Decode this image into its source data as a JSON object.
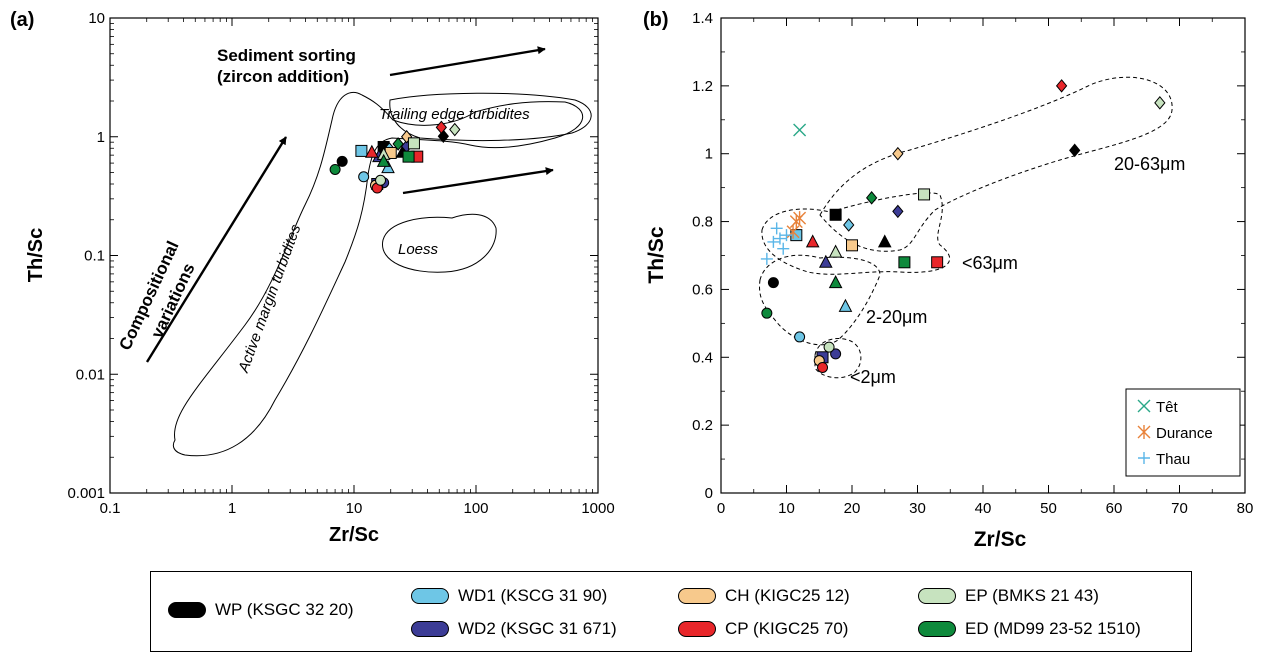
{
  "colors": {
    "WP": "#000000",
    "WD1": "#6ec6e6",
    "WD2": "#3c3c96",
    "CH": "#f7c98c",
    "CP": "#e8262a",
    "EP": "#c7e3bf",
    "ED": "#0e8a3c",
    "tet": "#2aa888",
    "durance": "#e8823a",
    "thau": "#5ab6e8"
  },
  "chart_data": [
    {
      "panel": "(a)",
      "type": "scatter",
      "xscale": "log",
      "yscale": "log",
      "xlim": [
        0.1,
        1000
      ],
      "ylim": [
        0.001,
        10
      ],
      "xlabel": "Zr/Sc",
      "ylabel": "Th/Sc",
      "xticks": [
        "0.1",
        "1",
        "10",
        "100",
        "1000"
      ],
      "yticks": [
        "0.001",
        "0.01",
        "0.1",
        "1",
        "10"
      ],
      "annotations": {
        "sorting1": "Sediment sorting",
        "sorting2": "(zircon addition)",
        "comp1": "Compositional",
        "comp2": "variations",
        "trailing": "Trailing edge turbidites",
        "active": "Active margin turbidites",
        "loess": "Loess"
      },
      "points": [
        {
          "s": "WP",
          "m": "circle",
          "x": 8,
          "y": 0.62
        },
        {
          "s": "WP",
          "m": "square",
          "x": 17.5,
          "y": 0.82
        },
        {
          "s": "WP",
          "m": "triangle",
          "x": 25,
          "y": 0.74
        },
        {
          "s": "WP",
          "m": "diamond",
          "x": 54,
          "y": 1.01
        },
        {
          "s": "WD1",
          "m": "circle",
          "x": 12,
          "y": 0.46
        },
        {
          "s": "WD1",
          "m": "square",
          "x": 11.5,
          "y": 0.76
        },
        {
          "s": "WD1",
          "m": "triangle",
          "x": 19,
          "y": 0.55
        },
        {
          "s": "WD1",
          "m": "diamond",
          "x": 19.5,
          "y": 0.79
        },
        {
          "s": "WD2",
          "m": "circle",
          "x": 17.5,
          "y": 0.41
        },
        {
          "s": "WD2",
          "m": "square",
          "x": 15.5,
          "y": 0.4
        },
        {
          "s": "WD2",
          "m": "triangle",
          "x": 16,
          "y": 0.68
        },
        {
          "s": "WD2",
          "m": "diamond",
          "x": 27,
          "y": 0.83
        },
        {
          "s": "CH",
          "m": "circle",
          "x": 15,
          "y": 0.39
        },
        {
          "s": "CH",
          "m": "square",
          "x": 20,
          "y": 0.73
        },
        {
          "s": "CH",
          "m": "diamond",
          "x": 27,
          "y": 1.0
        },
        {
          "s": "CP",
          "m": "circle",
          "x": 15.5,
          "y": 0.37
        },
        {
          "s": "CP",
          "m": "square",
          "x": 33,
          "y": 0.68
        },
        {
          "s": "CP",
          "m": "triangle",
          "x": 14,
          "y": 0.74
        },
        {
          "s": "CP",
          "m": "diamond",
          "x": 52,
          "y": 1.2
        },
        {
          "s": "EP",
          "m": "circle",
          "x": 16.5,
          "y": 0.43
        },
        {
          "s": "EP",
          "m": "square",
          "x": 31,
          "y": 0.88
        },
        {
          "s": "EP",
          "m": "triangle",
          "x": 17.5,
          "y": 0.71
        },
        {
          "s": "EP",
          "m": "diamond",
          "x": 67,
          "y": 1.15
        },
        {
          "s": "ED",
          "m": "circle",
          "x": 7,
          "y": 0.53
        },
        {
          "s": "ED",
          "m": "square",
          "x": 28,
          "y": 0.68
        },
        {
          "s": "ED",
          "m": "triangle",
          "x": 17.5,
          "y": 0.62
        },
        {
          "s": "ED",
          "m": "diamond",
          "x": 23,
          "y": 0.87
        }
      ]
    },
    {
      "panel": "(b)",
      "type": "scatter",
      "xlim": [
        0,
        80
      ],
      "ylim": [
        0,
        1.4
      ],
      "xlabel": "Zr/Sc",
      "ylabel": "Th/Sc",
      "xticks": [
        "0",
        "10",
        "20",
        "30",
        "40",
        "50",
        "60",
        "70",
        "80"
      ],
      "yticks": [
        "0",
        "0.2",
        "0.4",
        "0.6",
        "0.8",
        "1",
        "1.2",
        "1.4"
      ],
      "group_labels": {
        "g1": "20-63μm",
        "g2": "<63μm",
        "g3": "2-20μm",
        "g4": "<2μm"
      },
      "legend": {
        "placement": "bottom-right",
        "items": [
          {
            "key": "tet",
            "label": "Têt",
            "marker": "x"
          },
          {
            "key": "durance",
            "label": "Durance",
            "marker": "asterisk"
          },
          {
            "key": "thau",
            "label": "Thau",
            "marker": "plus"
          }
        ]
      },
      "points": [
        {
          "s": "WP",
          "m": "circle",
          "x": 8,
          "y": 0.62
        },
        {
          "s": "WP",
          "m": "square",
          "x": 17.5,
          "y": 0.82
        },
        {
          "s": "WP",
          "m": "triangle",
          "x": 25,
          "y": 0.74
        },
        {
          "s": "WP",
          "m": "diamond",
          "x": 54,
          "y": 1.01
        },
        {
          "s": "WD1",
          "m": "circle",
          "x": 12,
          "y": 0.46
        },
        {
          "s": "WD1",
          "m": "square",
          "x": 11.5,
          "y": 0.76
        },
        {
          "s": "WD1",
          "m": "triangle",
          "x": 19,
          "y": 0.55
        },
        {
          "s": "WD1",
          "m": "diamond",
          "x": 19.5,
          "y": 0.79
        },
        {
          "s": "WD2",
          "m": "circle",
          "x": 17.5,
          "y": 0.41
        },
        {
          "s": "WD2",
          "m": "square",
          "x": 15.5,
          "y": 0.4
        },
        {
          "s": "WD2",
          "m": "triangle",
          "x": 16,
          "y": 0.68
        },
        {
          "s": "WD2",
          "m": "diamond",
          "x": 27,
          "y": 0.83
        },
        {
          "s": "CH",
          "m": "circle",
          "x": 15,
          "y": 0.39
        },
        {
          "s": "CH",
          "m": "square",
          "x": 20,
          "y": 0.73
        },
        {
          "s": "CH",
          "m": "diamond",
          "x": 27,
          "y": 1.0
        },
        {
          "s": "CP",
          "m": "circle",
          "x": 15.5,
          "y": 0.37
        },
        {
          "s": "CP",
          "m": "square",
          "x": 33,
          "y": 0.68
        },
        {
          "s": "CP",
          "m": "triangle",
          "x": 14,
          "y": 0.74
        },
        {
          "s": "CP",
          "m": "diamond",
          "x": 52,
          "y": 1.2
        },
        {
          "s": "EP",
          "m": "circle",
          "x": 16.5,
          "y": 0.43
        },
        {
          "s": "EP",
          "m": "square",
          "x": 31,
          "y": 0.88
        },
        {
          "s": "EP",
          "m": "triangle",
          "x": 17.5,
          "y": 0.71
        },
        {
          "s": "EP",
          "m": "diamond",
          "x": 67,
          "y": 1.15
        },
        {
          "s": "ED",
          "m": "circle",
          "x": 7,
          "y": 0.53
        },
        {
          "s": "ED",
          "m": "square",
          "x": 28,
          "y": 0.68
        },
        {
          "s": "ED",
          "m": "triangle",
          "x": 17.5,
          "y": 0.62
        },
        {
          "s": "ED",
          "m": "diamond",
          "x": 23,
          "y": 0.87
        },
        {
          "s": "tet",
          "m": "x",
          "x": 12,
          "y": 1.07
        },
        {
          "s": "durance",
          "m": "asterisk",
          "x": 11.5,
          "y": 0.8
        },
        {
          "s": "durance",
          "m": "asterisk",
          "x": 12,
          "y": 0.81
        },
        {
          "s": "durance",
          "m": "asterisk",
          "x": 11,
          "y": 0.77
        },
        {
          "s": "thau",
          "m": "plus",
          "x": 8.5,
          "y": 0.78
        },
        {
          "s": "thau",
          "m": "plus",
          "x": 9,
          "y": 0.75
        },
        {
          "s": "thau",
          "m": "plus",
          "x": 8,
          "y": 0.74
        },
        {
          "s": "thau",
          "m": "plus",
          "x": 9.5,
          "y": 0.72
        },
        {
          "s": "thau",
          "m": "plus",
          "x": 10,
          "y": 0.76
        },
        {
          "s": "thau",
          "m": "plus",
          "x": 7,
          "y": 0.69
        }
      ]
    }
  ],
  "legend": [
    {
      "key": "WP",
      "label": "WP (KSGC 32 20)"
    },
    {
      "key": "WD1",
      "label": "WD1 (KSCG 31 90)"
    },
    {
      "key": "WD2",
      "label": "WD2 (KSGC 31 671)"
    },
    {
      "key": "CH",
      "label": "CH (KIGC25 12)"
    },
    {
      "key": "CP",
      "label": "CP (KIGC25 70)"
    },
    {
      "key": "EP",
      "label": "EP (BMKS 21 43)"
    },
    {
      "key": "ED",
      "label": "ED (MD99 23-52 1510)"
    }
  ]
}
